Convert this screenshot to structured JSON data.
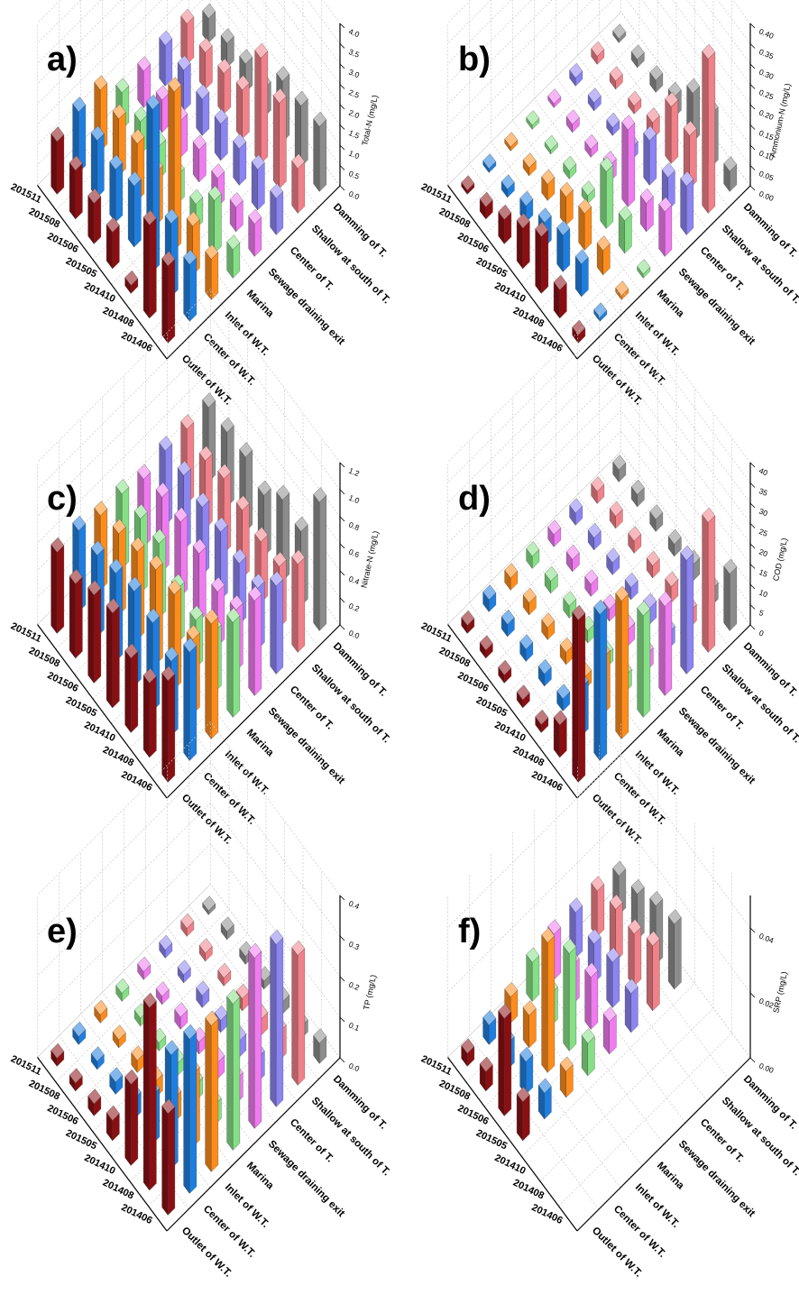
{
  "chart_data": [
    {
      "panel": "a)",
      "type": "bar3d",
      "zlabel": "Total-N (mg/L)",
      "zticks": [
        "0.0",
        "0.5",
        "1.0",
        "1.5",
        "2.0",
        "2.5",
        "3.0",
        "3.5",
        "4.0"
      ],
      "zlim": [
        0,
        4.0
      ],
      "categories": [
        "201406",
        "201408",
        "201410",
        "201505",
        "201506",
        "201508",
        "201511"
      ],
      "sites": [
        "Outlet of W.T.",
        "Center of W.T.",
        "Inlet of W.T.",
        "Marina",
        "Sewage draining exit",
        "Center of T.",
        "Shallow at south of T.",
        "Damming of T."
      ],
      "series": [
        {
          "values": [
            1.9,
            2.3,
            0.2,
            0.9,
            1.0,
            1.2,
            1.3
          ]
        },
        {
          "values": [
            1.4,
            1.8,
            4.0,
            1.5,
            1.3,
            1.4,
            1.5
          ]
        },
        {
          "values": [
            1.0,
            1.2,
            3.9,
            1.3,
            1.4,
            1.4,
            1.5
          ]
        },
        {
          "values": [
            0.7,
            1.3,
            0.6,
            0.7,
            0.8,
            0.8,
            0.9
          ]
        },
        {
          "values": [
            0.8,
            0.6,
            0.7,
            0.8,
            0.9,
            0.8,
            0.9
          ]
        },
        {
          "values": [
            0.9,
            1.0,
            0.9,
            0.9,
            0.9,
            1.0,
            1.0
          ]
        },
        {
          "values": [
            1.1,
            2.1,
            2.6,
            1.2,
            1.0,
            0.9,
            1.0
          ]
        },
        {
          "values": [
            1.6,
            1.5,
            1.5,
            0.7,
            0.7,
            0.6,
            0.6
          ]
        }
      ]
    },
    {
      "panel": "b)",
      "type": "bar3d",
      "zlabel": "Ammonium-N (mg/L)",
      "zticks": [
        "0.00",
        "0.05",
        "0.10",
        "0.15",
        "0.20",
        "0.25",
        "0.30",
        "0.35",
        "0.40"
      ],
      "zlim": [
        0,
        0.4
      ],
      "categories": [
        "201406",
        "201408",
        "201410",
        "201505",
        "201506",
        "201508",
        "201511"
      ],
      "sites": [
        "Outlet of W.T.",
        "Center of W.T.",
        "Inlet of W.T.",
        "Marina",
        "Sewage draining exit",
        "Center of T.",
        "Shallow at south of T.",
        "Damming of T."
      ],
      "series": [
        {
          "values": [
            0.02,
            0.07,
            0.14,
            0.1,
            0.06,
            0.03,
            0.01
          ]
        },
        {
          "values": [
            0.01,
            0.08,
            0.09,
            0.06,
            0.04,
            0.02,
            0.01
          ]
        },
        {
          "values": [
            0.01,
            0.06,
            0.09,
            0.07,
            0.04,
            0.02,
            0.01
          ]
        },
        {
          "values": [
            0.01,
            0.08,
            0.14,
            0.02,
            0.02,
            0.01,
            0.01
          ]
        },
        {
          "values": [
            0.11,
            0.07,
            0.19,
            0.04,
            0.02,
            0.02,
            0.01
          ]
        },
        {
          "values": [
            0.12,
            0.08,
            0.11,
            0.03,
            0.02,
            0.02,
            0.02
          ]
        },
        {
          "values": [
            0.38,
            0.13,
            0.14,
            0.04,
            0.02,
            0.02,
            0.02
          ]
        },
        {
          "values": [
            0.05,
            0.13,
            0.12,
            0.05,
            0.03,
            0.02,
            0.01
          ]
        }
      ]
    },
    {
      "panel": "c)",
      "type": "bar3d",
      "zlabel": "Nitrate-N (mg/L)",
      "zticks": [
        "0.0",
        "0.2",
        "0.4",
        "0.6",
        "0.8",
        "1.0",
        "1.2"
      ],
      "zlim": [
        0,
        1.2
      ],
      "categories": [
        "201406",
        "201408",
        "201410",
        "201505",
        "201506",
        "201508",
        "201511"
      ],
      "sites": [
        "Outlet of W.T.",
        "Center of W.T.",
        "Inlet of W.T.",
        "Marina",
        "Sewage draining exit",
        "Center of T.",
        "Shallow at south of T.",
        "Damming of T."
      ],
      "series": [
        {
          "values": [
            0.75,
            0.55,
            0.55,
            0.7,
            0.65,
            0.55,
            0.6
          ]
        },
        {
          "values": [
            0.8,
            0.55,
            0.65,
            0.7,
            0.65,
            0.6,
            0.6
          ]
        },
        {
          "values": [
            0.85,
            0.55,
            0.7,
            0.7,
            0.65,
            0.6,
            0.55
          ]
        },
        {
          "values": [
            0.7,
            0.45,
            0.35,
            0.4,
            0.55,
            0.55,
            0.55
          ]
        },
        {
          "values": [
            0.7,
            0.45,
            0.4,
            0.5,
            0.55,
            0.55,
            0.5
          ]
        },
        {
          "values": [
            0.65,
            0.45,
            0.45,
            0.5,
            0.5,
            0.55,
            0.55
          ]
        },
        {
          "values": [
            0.65,
            0.45,
            0.45,
            0.5,
            0.55,
            0.5,
            0.55
          ]
        },
        {
          "values": [
            0.95,
            0.55,
            0.6,
            0.45,
            0.55,
            0.55,
            0.55
          ]
        }
      ]
    },
    {
      "panel": "d)",
      "type": "bar3d",
      "zlabel": "COD (mg/L)",
      "zticks": [
        "0",
        "5",
        "10",
        "15",
        "20",
        "25",
        "30",
        "35",
        "40"
      ],
      "zlim": [
        0,
        40
      ],
      "categories": [
        "201406",
        "201408",
        "201410",
        "201505",
        "201506",
        "201508",
        "201511"
      ],
      "sites": [
        "Outlet of W.T.",
        "Center of W.T.",
        "Inlet of W.T.",
        "Marina",
        "Sewage draining exit",
        "Center of T.",
        "Shallow at south of T.",
        "Damming of T."
      ],
      "series": [
        {
          "values": [
            40,
            8,
            2,
            2,
            2,
            2,
            2
          ]
        },
        {
          "values": [
            36,
            12,
            3,
            3,
            3,
            3,
            3
          ]
        },
        {
          "values": [
            34,
            14,
            3,
            3,
            3,
            3,
            3
          ]
        },
        {
          "values": [
            25,
            4,
            3,
            3,
            3,
            3,
            3
          ]
        },
        {
          "values": [
            22,
            4,
            4,
            3,
            3,
            3,
            3
          ]
        },
        {
          "values": [
            28,
            4,
            4,
            3,
            3,
            3,
            3
          ]
        },
        {
          "values": [
            32,
            4,
            4,
            3,
            3,
            3,
            3
          ]
        },
        {
          "values": [
            14,
            4,
            4,
            3,
            3,
            3,
            3
          ]
        }
      ]
    },
    {
      "panel": "e)",
      "type": "bar3d",
      "zlabel": "TP (mg/L)",
      "zticks": [
        "0.0",
        "0.1",
        "0.2",
        "0.3",
        "0.4"
      ],
      "zlim": [
        0,
        0.4
      ],
      "categories": [
        "201406",
        "201408",
        "201410",
        "201505",
        "201506",
        "201508",
        "201511"
      ],
      "sites": [
        "Outlet of W.T.",
        "Center of W.T.",
        "Inlet of W.T.",
        "Marina",
        "Sewage draining exit",
        "Center of T.",
        "Shallow at south of T.",
        "Damming of T."
      ],
      "series": [
        {
          "values": [
            0.25,
            0.45,
            0.2,
            0.05,
            0.03,
            0.02,
            0.02
          ]
        },
        {
          "values": [
            0.38,
            0.28,
            0.12,
            0.05,
            0.03,
            0.02,
            0.02
          ]
        },
        {
          "values": [
            0.36,
            0.18,
            0.06,
            0.04,
            0.03,
            0.02,
            0.02
          ]
        },
        {
          "values": [
            0.36,
            0.05,
            0.04,
            0.03,
            0.02,
            0.02,
            0.02
          ]
        },
        {
          "values": [
            0.42,
            0.06,
            0.04,
            0.03,
            0.03,
            0.02,
            0.02
          ]
        },
        {
          "values": [
            0.4,
            0.06,
            0.04,
            0.03,
            0.03,
            0.02,
            0.02
          ]
        },
        {
          "values": [
            0.32,
            0.07,
            0.04,
            0.03,
            0.02,
            0.02,
            0.02
          ]
        },
        {
          "values": [
            0.05,
            0.03,
            0.03,
            0.02,
            0.02,
            0.02,
            0.01
          ]
        }
      ]
    },
    {
      "panel": "f)",
      "type": "bar3d",
      "zlabel": "SRP (mg/L)",
      "zticks": [
        "0.00",
        "0.02",
        "0.04"
      ],
      "zlim": [
        0,
        0.05
      ],
      "categories": [
        "201406",
        "201408",
        "201410",
        "201505",
        "201506",
        "201508",
        "201511"
      ],
      "sites": [
        "Outlet of W.T.",
        "Center of W.T.",
        "Inlet of W.T.",
        "Marina",
        "Sewage draining exit",
        "Center of T.",
        "Shallow at south of T.",
        "Damming of T."
      ],
      "series": [
        {
          "values": [
            0,
            0,
            0,
            0.012,
            0.03,
            0.006,
            0.004
          ]
        },
        {
          "values": [
            0,
            0,
            0,
            0.008,
            0.01,
            0.008,
            0.006
          ]
        },
        {
          "values": [
            0,
            0,
            0,
            0.008,
            0.04,
            0.01,
            0.008
          ]
        },
        {
          "values": [
            0,
            0,
            0,
            0.01,
            0.03,
            0.01,
            0.012
          ]
        },
        {
          "values": [
            0,
            0,
            0,
            0.01,
            0.016,
            0.012,
            0.014
          ]
        },
        {
          "values": [
            0,
            0,
            0,
            0.012,
            0.014,
            0.012,
            0.014
          ]
        },
        {
          "values": [
            0,
            0,
            0,
            0.02,
            0.016,
            0.016,
            0.014
          ]
        },
        {
          "values": [
            0,
            0,
            0,
            0.02,
            0.018,
            0.014,
            0.012
          ]
        }
      ]
    }
  ],
  "colors": [
    "#8b0f12",
    "#1e7ee0",
    "#ff8c1a",
    "#85e085",
    "#f07af0",
    "#8c84f2",
    "#f28088",
    "#8c8c8c"
  ]
}
